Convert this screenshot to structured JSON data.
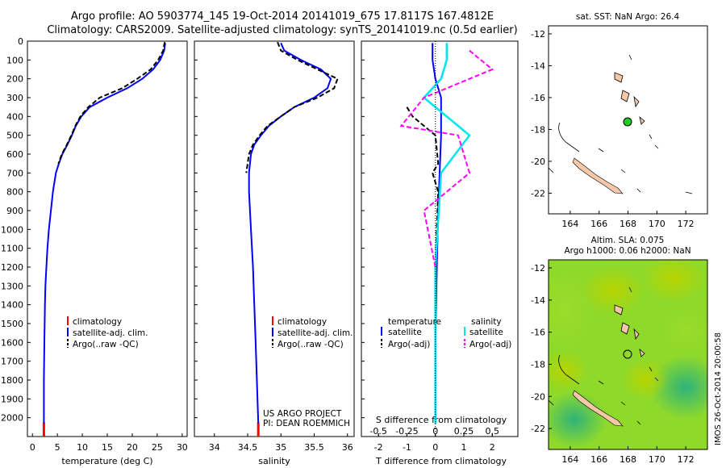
{
  "title": {
    "line1": "Argo profile: AO 5903774_145 19-Oct-2014 20141019_675 17.8117S 167.4812E",
    "line2": "Climatology: CARS2009. Satellite-adjusted climatology: synTS_20141019.nc (0.5d earlier)"
  },
  "watermark": "IMOS 26-Oct-2014 20:00:58",
  "credit": {
    "line1": "US ARGO PROJECT",
    "line2": "PI: DEAN ROEMMICH"
  },
  "depth_ticks": [
    "0",
    "100",
    "200",
    "300",
    "400",
    "500",
    "600",
    "700",
    "800",
    "900",
    "1000",
    "1100",
    "1200",
    "1300",
    "1400",
    "1500",
    "1600",
    "1700",
    "1800",
    "1900",
    "2000"
  ],
  "colors": {
    "climatology": "#ff0000",
    "satellite": "#0000ff",
    "argo": "#000000",
    "sal_satellite": "#00e5ee",
    "sal_argo": "#ff00ff",
    "land": "#f4c8a8",
    "sla_green": "#7ed321",
    "float": "#22cc22"
  },
  "chart_data": [
    {
      "type": "line",
      "xlabel": "temperature (deg C)",
      "ylabel": "",
      "xlim": [
        -1,
        31
      ],
      "ylim": [
        2100,
        0
      ],
      "xticks": [
        "0",
        "5",
        "10",
        "15",
        "20",
        "25",
        "30"
      ],
      "legend": [
        "climatology",
        "satellite-adj. clim.",
        "Argo(..raw -QC)"
      ],
      "series": [
        {
          "name": "climatology",
          "x": [
            2.3,
            2.3
          ],
          "y": [
            2025,
            2100
          ]
        },
        {
          "name": "satellite-adj. clim.",
          "x": [
            26.6,
            26.4,
            25.6,
            24.2,
            22.0,
            19.0,
            15.0,
            11.5,
            9.8,
            8.7,
            7.9,
            7.0,
            6.0,
            5.3,
            4.7,
            4.1,
            3.7,
            3.3,
            3.0,
            2.8,
            2.6,
            2.5,
            2.4,
            2.3,
            2.3
          ],
          "y": [
            10,
            50,
            100,
            150,
            200,
            250,
            300,
            350,
            400,
            450,
            500,
            550,
            600,
            650,
            700,
            800,
            900,
            1000,
            1100,
            1200,
            1300,
            1400,
            1600,
            1800,
            2030
          ]
        },
        {
          "name": "Argo(..raw -QC)",
          "x": [
            26.5,
            26.2,
            25.2,
            23.7,
            21.0,
            18.0,
            13.5,
            11.2,
            9.6,
            8.6,
            7.8,
            6.9,
            5.9,
            5.2
          ],
          "y": [
            5,
            50,
            100,
            150,
            200,
            250,
            300,
            350,
            400,
            450,
            500,
            550,
            600,
            650
          ]
        }
      ]
    },
    {
      "type": "line",
      "xlabel": "salinity",
      "ylabel": "",
      "xlim": [
        33.7,
        36.1
      ],
      "ylim": [
        2100,
        0
      ],
      "xticks": [
        "34",
        "34.5",
        "35",
        "35.5",
        "36"
      ],
      "legend": [
        "climatology",
        "satellite-adj. clim.",
        "Argo(..raw -QC)"
      ],
      "series": [
        {
          "name": "climatology",
          "x": [
            34.66,
            34.66
          ],
          "y": [
            2025,
            2100
          ]
        },
        {
          "name": "satellite-adj. clim.",
          "x": [
            35.0,
            35.05,
            35.3,
            35.6,
            35.75,
            35.7,
            35.5,
            35.2,
            35.0,
            34.82,
            34.7,
            34.6,
            34.55,
            34.52,
            34.52,
            34.55,
            34.58,
            34.62,
            34.66
          ],
          "y": [
            10,
            50,
            100,
            150,
            200,
            250,
            300,
            350,
            400,
            450,
            500,
            550,
            600,
            700,
            800,
            1000,
            1200,
            1600,
            2030
          ]
        },
        {
          "name": "Argo(..raw -QC)",
          "x": [
            34.95,
            35.0,
            35.25,
            35.55,
            35.85,
            35.8,
            35.55,
            35.2,
            35.0,
            34.8,
            34.68,
            34.58,
            34.52,
            34.48
          ],
          "y": [
            5,
            50,
            100,
            150,
            200,
            250,
            300,
            350,
            400,
            450,
            500,
            550,
            600,
            700
          ]
        }
      ]
    },
    {
      "type": "line",
      "xlabel": "T difference from climatology",
      "xlabel2": "S difference from climatology",
      "ylabel": "",
      "xlim": [
        -2.6,
        2.9
      ],
      "xlim2": [
        -0.65,
        0.725
      ],
      "ylim": [
        2100,
        0
      ],
      "xticks": [
        "-2",
        "-1",
        "0",
        "1",
        "2"
      ],
      "xticks2": [
        "-0.5",
        "-0.25",
        "0",
        "0.25",
        "0.5"
      ],
      "legend_title_t": "temperature",
      "legend_title_s": "salinity",
      "legend": [
        "satellite",
        "Argo(-adj)",
        "satellite",
        "Argo(-adj)"
      ],
      "series": [
        {
          "name": "satellite",
          "x": [
            -0.1,
            -0.1,
            0,
            0.2,
            0.2,
            0.15,
            0.1,
            0.05,
            0,
            0
          ],
          "y": [
            10,
            100,
            200,
            300,
            500,
            700,
            900,
            1200,
            1600,
            2030
          ]
        },
        {
          "name": "Argo(-adj)",
          "x": [
            -1.0,
            -0.8,
            -0.4,
            0,
            0.1,
            -0.1,
            0.1,
            0,
            0
          ],
          "y": [
            350,
            400,
            450,
            500,
            650,
            700,
            800,
            1200,
            2030
          ]
        },
        {
          "name": "satellite",
          "x": [
            0.1,
            0.1,
            0.05,
            -0.1,
            0.2,
            0.3,
            0.05,
            0,
            0
          ],
          "y": [
            10,
            100,
            200,
            300,
            450,
            500,
            700,
            1200,
            2030
          ]
        },
        {
          "name": "Argo(-adj)",
          "x": [
            0.3,
            0.5,
            -0.1,
            -0.3,
            0.2,
            0.3,
            -0.1,
            0
          ],
          "y": [
            50,
            150,
            300,
            450,
            500,
            700,
            900,
            1200
          ]
        }
      ]
    }
  ],
  "sst_map": {
    "title": "sat. SST: NaN Argo: 26.4",
    "xticks": [
      "164",
      "166",
      "168",
      "170",
      "172"
    ],
    "yticks": [
      "-12",
      "-14",
      "-16",
      "-18",
      "-20",
      "-22"
    ]
  },
  "sla_map": {
    "title1": "Altim. SLA: 0.075",
    "title2": "Argo h1000: 0.06 h2000: NaN",
    "xticks": [
      "164",
      "166",
      "168",
      "170",
      "172"
    ],
    "yticks": [
      "-12",
      "-14",
      "-16",
      "-18",
      "-20",
      "-22"
    ]
  }
}
